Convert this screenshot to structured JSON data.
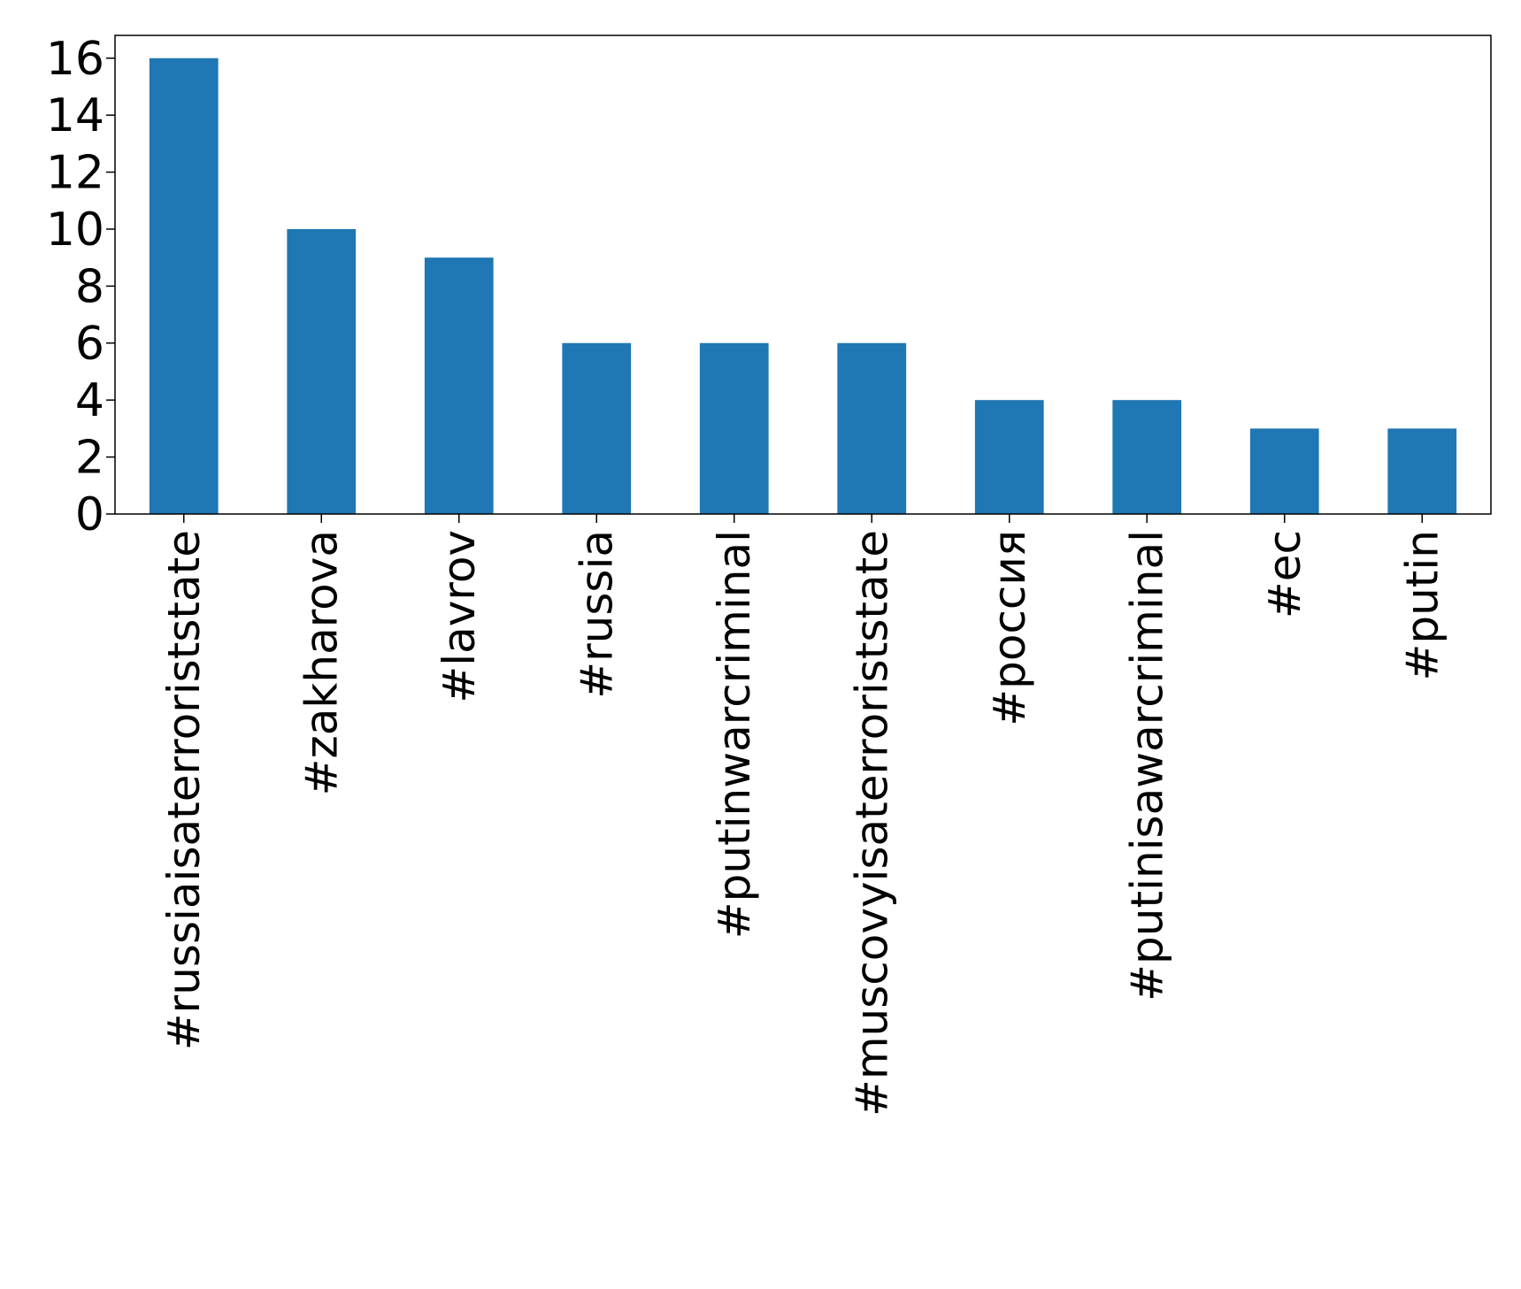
{
  "chart_data": {
    "type": "bar",
    "title": "",
    "xlabel": "",
    "ylabel": "",
    "categories": [
      "#russiaisaterroriststate",
      "#zakharova",
      "#lavrov",
      "#russia",
      "#putinwarcriminal",
      "#muscovyisaterroriststate",
      "#россия",
      "#putinisawarcriminal",
      "#ес",
      "#putin"
    ],
    "values": [
      16,
      10,
      9,
      6,
      6,
      6,
      4,
      4,
      3,
      3
    ],
    "ylim": [
      0,
      16.8
    ],
    "yticks": [
      "0",
      "2",
      "4",
      "6",
      "8",
      "10",
      "12",
      "14",
      "16"
    ],
    "grid": false,
    "bar_color": "#1f77b4",
    "axis_color": "#000000"
  }
}
